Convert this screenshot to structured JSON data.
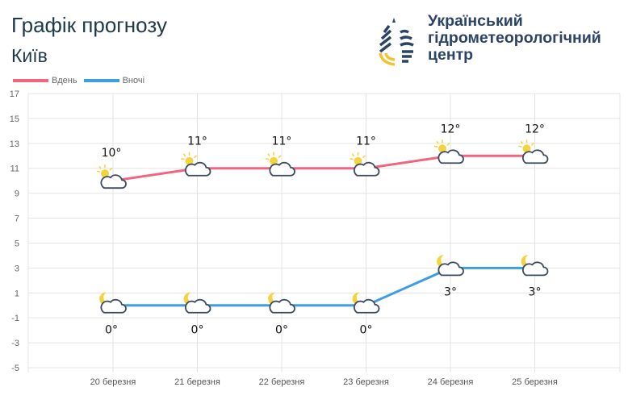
{
  "header": {
    "title": "Графік прогнозу",
    "city": "Київ",
    "organization": [
      "Український",
      "гідрометеорологічний",
      "центр"
    ]
  },
  "colors": {
    "day": "#f0657f",
    "night": "#3e9fe0",
    "text": "#1d3a4a",
    "grid": "#e4e4e4"
  },
  "chart_data": {
    "type": "line",
    "categories": [
      "20 березня",
      "21 березня",
      "22 березня",
      "23 березня",
      "24 березня",
      "25 березня"
    ],
    "series": [
      {
        "name": "Вдень",
        "values": [
          10,
          11,
          11,
          11,
          12,
          12
        ],
        "labels": [
          "10°",
          "11°",
          "11°",
          "11°",
          "12°",
          "12°"
        ],
        "icon": "sun-cloud-icon"
      },
      {
        "name": "Вночі",
        "values": [
          0,
          0,
          0,
          0,
          3,
          3
        ],
        "labels": [
          "0°",
          "0°",
          "0°",
          "0°",
          "3°",
          "3°"
        ],
        "icon": "moon-cloud-icon"
      }
    ],
    "ylim": [
      -5,
      17
    ],
    "yticks": [
      17,
      15,
      13,
      11,
      9,
      7,
      5,
      3,
      1,
      -1,
      -3,
      -5
    ],
    "grid": true,
    "legend": "top-left"
  }
}
